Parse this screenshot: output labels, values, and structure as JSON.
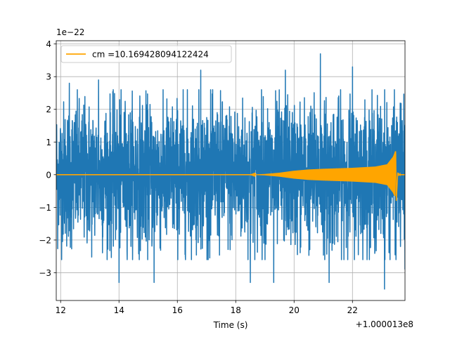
{
  "chart_data": {
    "type": "line",
    "title": "",
    "xlabel": "Time (s)",
    "ylabel": "",
    "x_offset_label": "+1.000013e8",
    "y_scale_label": "1e−22",
    "xlim": [
      11.85,
      23.8
    ],
    "ylim": [
      -3.85,
      4.1
    ],
    "x_ticks": [
      {
        "value": 12,
        "label": "12"
      },
      {
        "value": 14,
        "label": "14"
      },
      {
        "value": 16,
        "label": "16"
      },
      {
        "value": 18,
        "label": "18"
      },
      {
        "value": 20,
        "label": "20"
      },
      {
        "value": 22,
        "label": "22"
      }
    ],
    "y_ticks": [
      {
        "value": -3,
        "label": "−3"
      },
      {
        "value": -2,
        "label": "−2"
      },
      {
        "value": -1,
        "label": "−1"
      },
      {
        "value": 0,
        "label": "0"
      },
      {
        "value": 1,
        "label": "1"
      },
      {
        "value": 2,
        "label": "2"
      },
      {
        "value": 3,
        "label": "3"
      },
      {
        "value": 4,
        "label": "4"
      }
    ],
    "grid": true,
    "legend_position": "upper-left",
    "series": [
      {
        "name": "",
        "color": "#1f77b4",
        "style": "noise",
        "x_range": [
          11.85,
          23.8
        ],
        "typical_amplitude": 2.0,
        "peaks": [
          {
            "x": 12.3,
            "y": 2.8
          },
          {
            "x": 13.3,
            "y": 2.9
          },
          {
            "x": 15.2,
            "y": 3.1
          },
          {
            "x": 16.8,
            "y": 3.2
          },
          {
            "x": 18.5,
            "y": 3.3
          },
          {
            "x": 19.7,
            "y": 3.2
          },
          {
            "x": 20.9,
            "y": 3.7
          },
          {
            "x": 22.0,
            "y": 3.3
          },
          {
            "x": 23.1,
            "y": 3.2
          },
          {
            "x": 14.0,
            "y": -3.3
          },
          {
            "x": 15.2,
            "y": -3.3
          },
          {
            "x": 18.5,
            "y": -3.3
          },
          {
            "x": 19.3,
            "y": -3.3
          },
          {
            "x": 21.2,
            "y": -3.3
          },
          {
            "x": 23.1,
            "y": -3.5
          },
          {
            "x": 23.8,
            "y": -2.9
          }
        ]
      },
      {
        "name": "cm =10.169428094122424",
        "color": "#ffa500",
        "style": "chirp",
        "envelope": [
          {
            "x": 11.85,
            "y": 0.0
          },
          {
            "x": 18.5,
            "y": 0.0
          },
          {
            "x": 19.0,
            "y": 0.02
          },
          {
            "x": 19.5,
            "y": 0.06
          },
          {
            "x": 20.0,
            "y": 0.12
          },
          {
            "x": 20.5,
            "y": 0.16
          },
          {
            "x": 21.0,
            "y": 0.18
          },
          {
            "x": 22.0,
            "y": 0.21
          },
          {
            "x": 22.8,
            "y": 0.25
          },
          {
            "x": 23.2,
            "y": 0.32
          },
          {
            "x": 23.4,
            "y": 0.55
          },
          {
            "x": 23.48,
            "y": 0.72
          },
          {
            "x": 23.5,
            "y": -0.82
          },
          {
            "x": 23.55,
            "y": 0.05
          },
          {
            "x": 23.65,
            "y": 0.0
          },
          {
            "x": 23.8,
            "y": 0.0
          }
        ]
      }
    ]
  }
}
